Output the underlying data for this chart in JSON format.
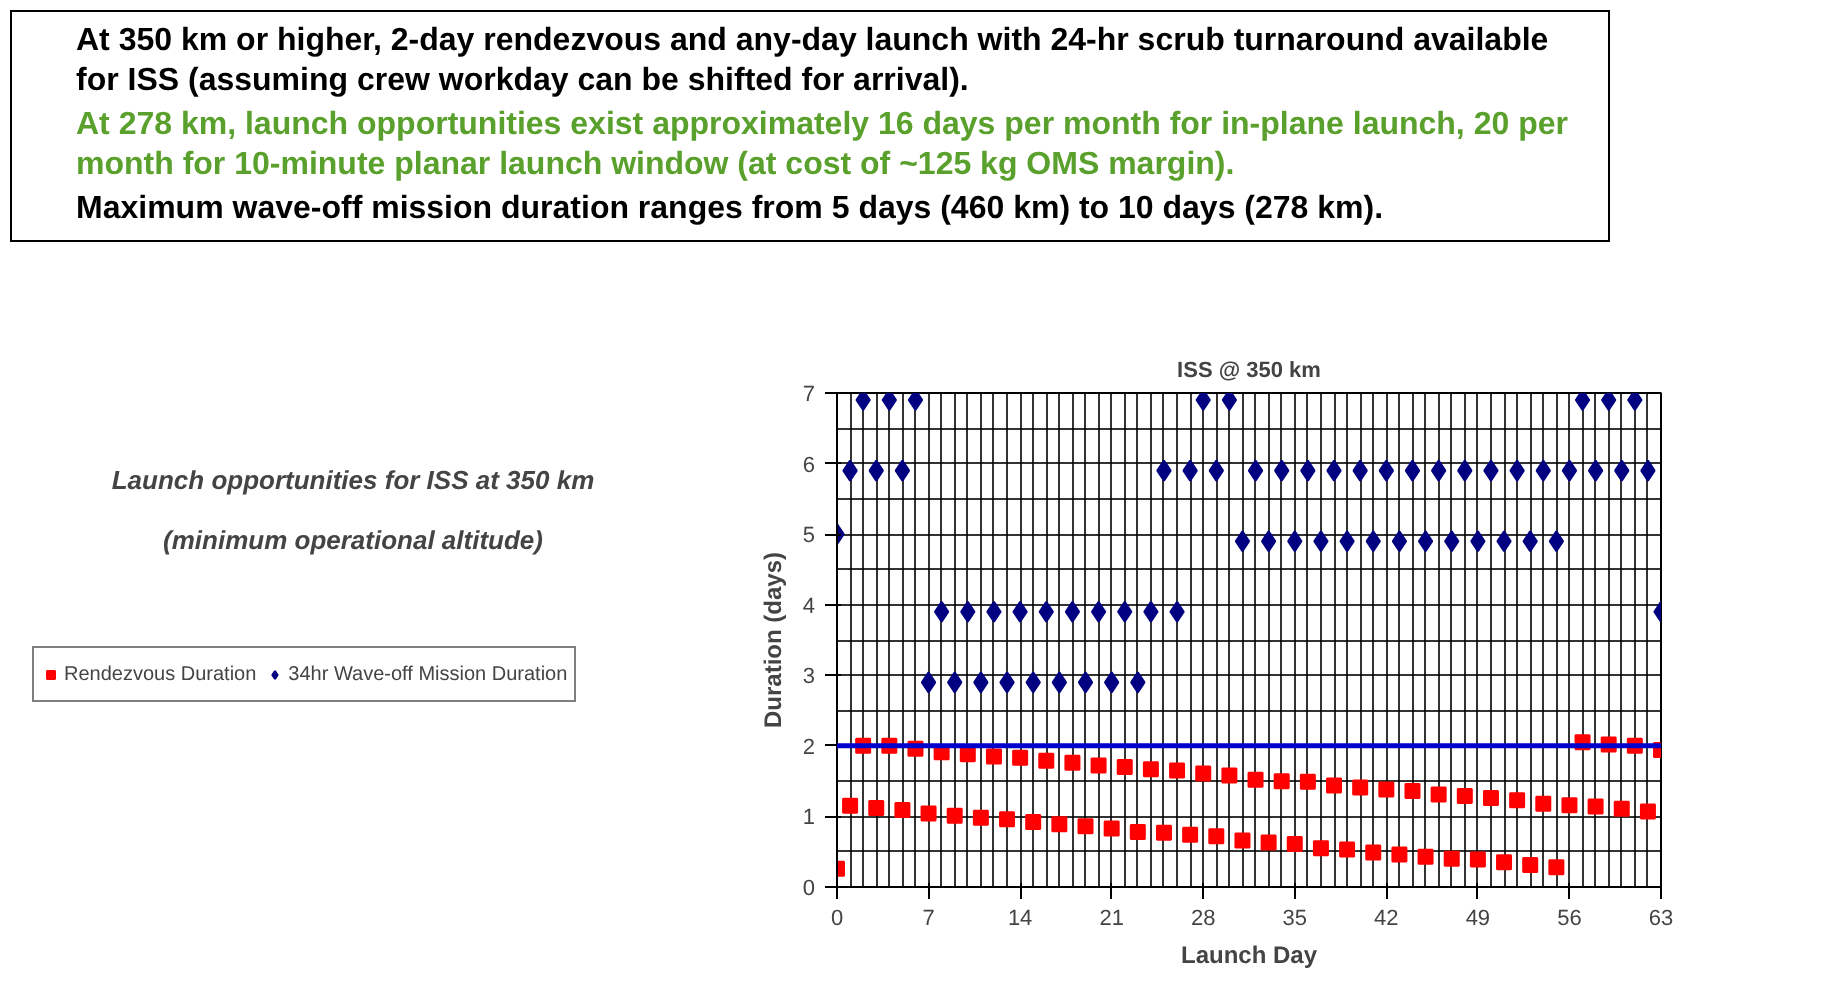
{
  "chart_data": {
    "type": "scatter",
    "title": "ISS @ 350 km",
    "xlabel": "Launch Day",
    "ylabel": "Duration (days)",
    "annotations": [
      "At 350 km or higher, 2-day rendezvous and any-day launch with 24-hr scrub turnaround available for ISS (assuming crew workday can be shifted for arrival).",
      "At 278 km, launch opportunities exist approximately 16 days per month for in-plane launch, 20 per month for 10-minute planar launch window (at cost of ~125 kg OMS margin).",
      "Maximum wave-off mission duration ranges from 5 days (460 km) to 10 days (278 km).",
      "Launch opportunities for ISS at 350 km",
      "(minimum operational altitude)"
    ],
    "x": [
      0,
      1,
      2,
      3,
      4,
      5,
      6,
      7,
      8,
      9,
      10,
      11,
      12,
      13,
      14,
      15,
      16,
      17,
      18,
      19,
      20,
      21,
      22,
      23,
      24,
      25,
      26,
      27,
      28,
      29,
      30,
      31,
      32,
      33,
      34,
      35,
      36,
      37,
      38,
      39,
      40,
      41,
      42,
      43,
      44,
      45,
      46,
      47,
      48,
      49,
      50,
      51,
      52,
      53,
      54,
      55,
      56,
      57,
      58,
      59,
      60,
      61,
      62,
      63
    ],
    "series": [
      {
        "name": "Rendezvous Duration",
        "color": "#ff0000",
        "marker": "square",
        "values": [
          0.26,
          1.15,
          2.0,
          1.12,
          2.0,
          1.09,
          1.96,
          1.04,
          1.91,
          1.01,
          1.88,
          0.98,
          1.85,
          0.96,
          1.83,
          0.92,
          1.79,
          0.89,
          1.76,
          0.86,
          1.72,
          0.83,
          1.7,
          0.78,
          1.67,
          0.77,
          1.65,
          0.74,
          1.61,
          0.72,
          1.58,
          0.66,
          1.52,
          0.63,
          1.5,
          0.61,
          1.49,
          0.55,
          1.44,
          0.53,
          1.41,
          0.49,
          1.38,
          0.46,
          1.36,
          0.43,
          1.31,
          0.4,
          1.29,
          0.39,
          1.26,
          0.35,
          1.23,
          0.31,
          1.18,
          0.28,
          1.16,
          2.05,
          1.14,
          2.02,
          1.11,
          2.0,
          1.07,
          1.94
        ]
      },
      {
        "name": "34hr Wave-off Mission Duration",
        "color": "#000080",
        "marker": "diamond",
        "values": [
          5.0,
          5.9,
          6.9,
          5.9,
          6.9,
          5.9,
          6.9,
          2.9,
          3.9,
          2.9,
          3.9,
          2.9,
          3.9,
          2.9,
          3.9,
          2.9,
          3.9,
          2.9,
          3.9,
          2.9,
          3.9,
          2.9,
          3.9,
          2.9,
          3.9,
          5.9,
          3.9,
          5.9,
          6.9,
          5.9,
          6.9,
          4.9,
          5.9,
          4.9,
          5.9,
          4.9,
          5.9,
          4.9,
          5.9,
          4.9,
          5.9,
          4.9,
          5.9,
          4.9,
          5.9,
          4.9,
          5.9,
          4.9,
          5.9,
          4.9,
          5.9,
          4.9,
          5.9,
          4.9,
          5.9,
          4.9,
          5.9,
          6.9,
          5.9,
          6.9,
          5.9,
          6.9,
          5.9,
          3.9
        ]
      }
    ],
    "xlim": [
      0,
      63
    ],
    "xticks": [
      0,
      7,
      14,
      21,
      28,
      35,
      42,
      49,
      56,
      63
    ],
    "ylim": [
      0,
      7
    ],
    "yticks": [
      0,
      1,
      2,
      3,
      4,
      5,
      6,
      7
    ],
    "grid": true,
    "legend": "left",
    "ref_lines": [
      {
        "axis": "y",
        "value": 2,
        "color": "#0000cc"
      }
    ]
  }
}
